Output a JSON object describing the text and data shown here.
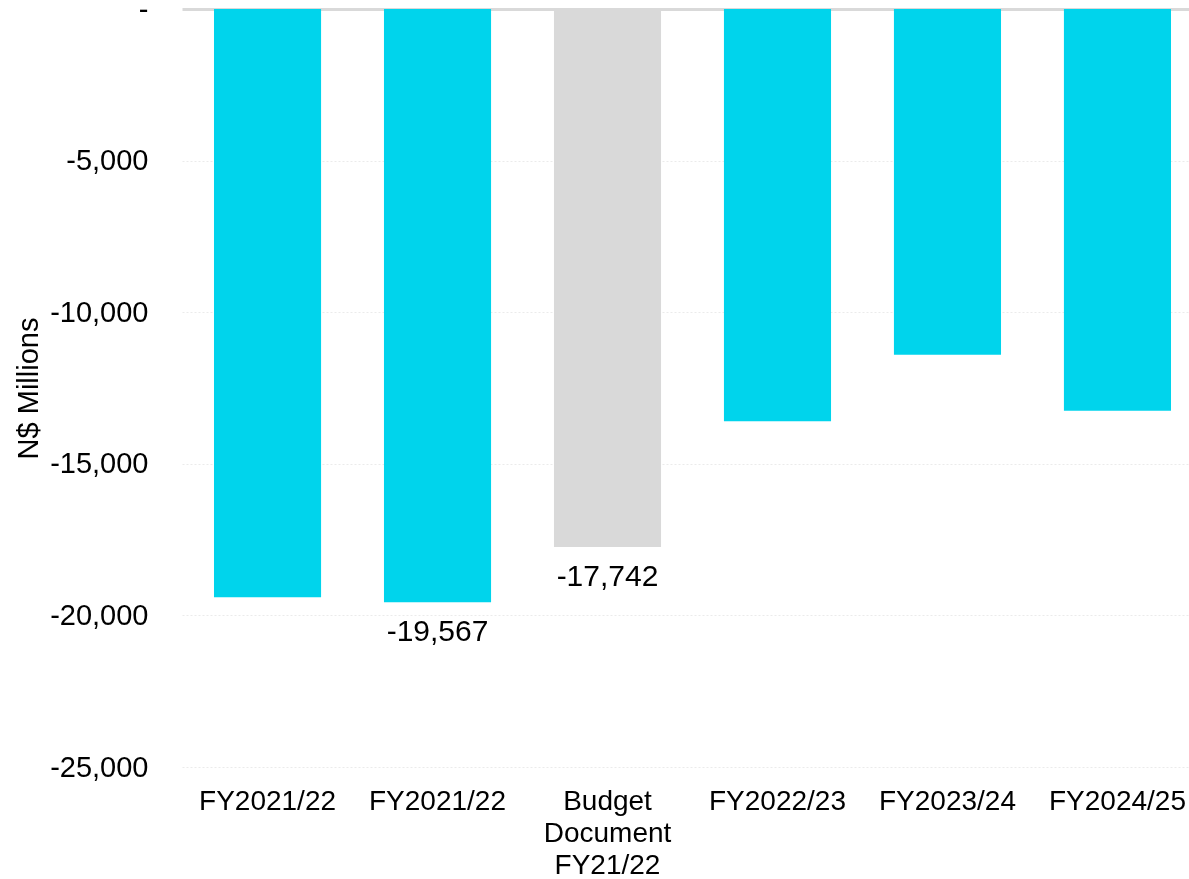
{
  "chart_data": {
    "type": "bar",
    "categories": [
      "FY2021/22",
      "FY2021/22",
      "Budget Document FY21/22",
      "FY2022/23",
      "FY2023/24",
      "FY2024/25"
    ],
    "values": [
      -19400,
      -19567,
      -17742,
      -13600,
      -11400,
      -13250
    ],
    "colors": [
      "#00d4ec",
      "#00d4ec",
      "#d9d9d9",
      "#00d4ec",
      "#00d4ec",
      "#00d4ec"
    ],
    "value_labels": [
      null,
      "-19,567",
      "-17,742",
      null,
      null,
      null
    ],
    "ylabel": "N$ Millions",
    "ylim": [
      -25000,
      0
    ],
    "yticks": [
      {
        "value": -25000,
        "label": "-25,000"
      },
      {
        "value": -20000,
        "label": "-20,000"
      },
      {
        "value": -15000,
        "label": "-15,000"
      },
      {
        "value": -10000,
        "label": "-10,000"
      },
      {
        "value": -5000,
        "label": "-5,000"
      },
      {
        "value": 0,
        "label": "-"
      }
    ],
    "grid": "y"
  }
}
